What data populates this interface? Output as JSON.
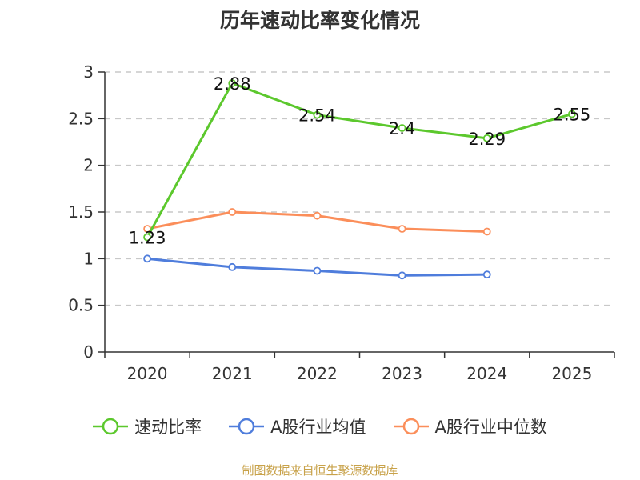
{
  "title": "历年速动比率变化情况",
  "source": "制图数据来自恒生聚源数据库",
  "chart_data": {
    "type": "line",
    "categories": [
      "2020",
      "2021",
      "2022",
      "2023",
      "2024",
      "2025"
    ],
    "ylim": [
      0,
      3
    ],
    "yticks": [
      "0",
      "0.5",
      "1",
      "1.5",
      "2",
      "2.5",
      "3"
    ],
    "grid": true,
    "legend_position": "bottom",
    "series": [
      {
        "name": "速动比率",
        "color": "#5cc82d",
        "values": [
          1.23,
          2.88,
          2.54,
          2.4,
          2.29,
          2.55
        ],
        "labels": [
          "1.23",
          "2.88",
          "2.54",
          "2.4",
          "2.29",
          "2.55"
        ]
      },
      {
        "name": "A股行业均值",
        "color": "#4f7ddc",
        "values": [
          1.0,
          0.91,
          0.87,
          0.82,
          0.83,
          null
        ]
      },
      {
        "name": "A股行业中位数",
        "color": "#fb8e5a",
        "values": [
          1.32,
          1.5,
          1.46,
          1.32,
          1.29,
          null
        ]
      }
    ]
  }
}
